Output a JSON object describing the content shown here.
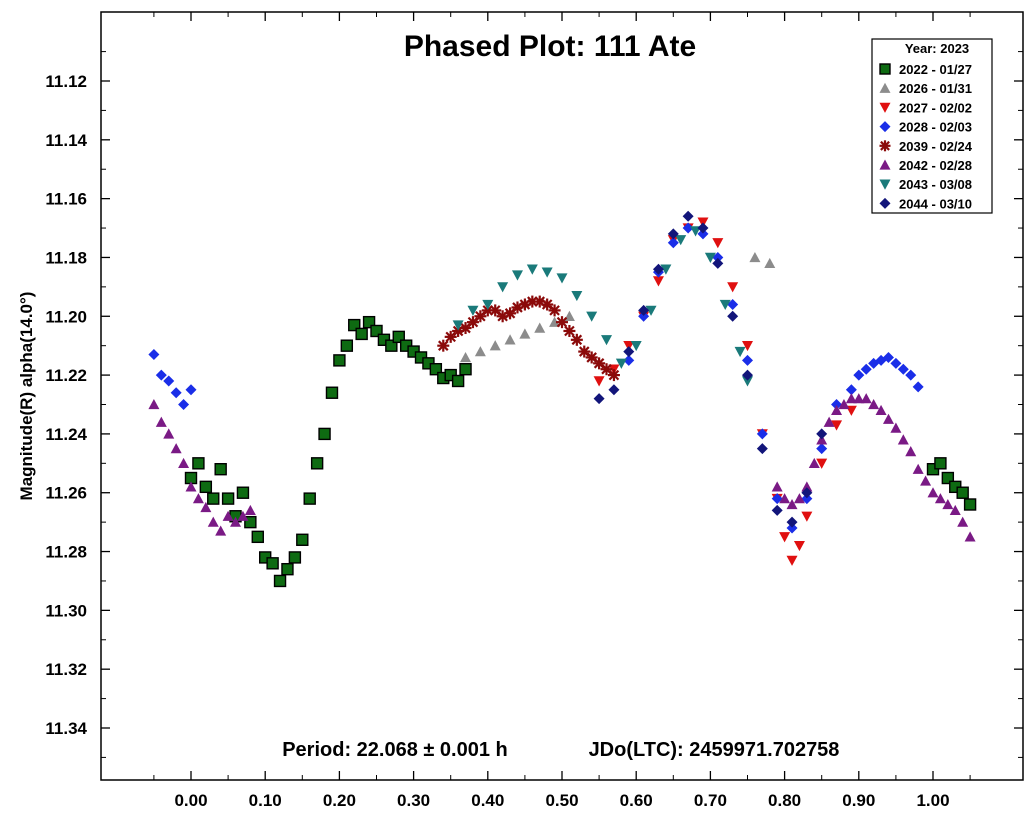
{
  "chart_data": {
    "type": "scatter",
    "title": "Phased Plot: 111 Ate",
    "xlabel": "",
    "ylabel": "Magnitude(R) alpha(14.0°)",
    "xlim": [
      -0.12,
      1.12
    ],
    "ylim": [
      11.1,
      11.36
    ],
    "y_inverted": true,
    "x_ticks": [
      "0.00",
      "0.10",
      "0.20",
      "0.30",
      "0.40",
      "0.50",
      "0.60",
      "0.70",
      "0.80",
      "0.90",
      "1.00"
    ],
    "x_tick_values": [
      0,
      0.1,
      0.2,
      0.3,
      0.4,
      0.5,
      0.6,
      0.7,
      0.8,
      0.9,
      1.0
    ],
    "y_ticks": [
      "11.12",
      "11.14",
      "11.16",
      "11.18",
      "11.20",
      "11.22",
      "11.24",
      "11.26",
      "11.28",
      "11.30",
      "11.32",
      "11.34"
    ],
    "y_tick_values": [
      11.12,
      11.14,
      11.16,
      11.18,
      11.2,
      11.22,
      11.24,
      11.26,
      11.28,
      11.3,
      11.32,
      11.34
    ],
    "grid": false,
    "legend_position": "top-right",
    "legend_title": "Year: 2023",
    "period_label": "Period: 22.068 ± 0.001 h",
    "epoch_label": "JDo(LTC): 2459971.702758",
    "series": [
      {
        "name": "2022 - 01/27",
        "marker": "square",
        "color": "#0e6b12",
        "x": [
          0.0,
          0.01,
          0.02,
          0.03,
          0.04,
          0.05,
          0.06,
          0.07,
          0.08,
          0.09,
          0.1,
          0.11,
          0.12,
          0.13,
          0.14,
          0.15,
          0.16,
          0.17,
          0.18,
          0.19,
          0.2,
          0.21,
          0.22,
          0.23,
          0.24,
          0.25,
          0.26,
          0.27,
          0.28,
          0.29,
          0.3,
          0.31,
          0.32,
          0.33,
          0.34,
          0.35,
          0.36,
          0.37,
          1.0,
          1.01,
          1.02,
          1.03,
          1.04,
          1.05
        ],
        "y": [
          11.255,
          11.25,
          11.258,
          11.262,
          11.252,
          11.262,
          11.268,
          11.26,
          11.27,
          11.275,
          11.282,
          11.284,
          11.29,
          11.286,
          11.282,
          11.276,
          11.262,
          11.25,
          11.24,
          11.226,
          11.215,
          11.21,
          11.203,
          11.206,
          11.202,
          11.205,
          11.208,
          11.21,
          11.207,
          11.21,
          11.212,
          11.214,
          11.216,
          11.218,
          11.221,
          11.22,
          11.222,
          11.218,
          11.252,
          11.25,
          11.255,
          11.258,
          11.26,
          11.264
        ]
      },
      {
        "name": "2026 - 01/31",
        "marker": "triangle-up",
        "color": "#8c8c8c",
        "x": [
          0.37,
          0.39,
          0.41,
          0.43,
          0.45,
          0.47,
          0.49,
          0.51,
          0.76,
          0.78
        ],
        "y": [
          11.214,
          11.212,
          11.21,
          11.208,
          11.206,
          11.204,
          11.202,
          11.2,
          11.18,
          11.182
        ]
      },
      {
        "name": "2027 - 02/02",
        "marker": "triangle-down",
        "color": "#e01010",
        "x": [
          0.55,
          0.57,
          0.59,
          0.61,
          0.63,
          0.65,
          0.67,
          0.69,
          0.71,
          0.73,
          0.75,
          0.77,
          0.79,
          0.8,
          0.81,
          0.82,
          0.83,
          0.85,
          0.87,
          0.89
        ],
        "y": [
          11.222,
          11.218,
          11.21,
          11.2,
          11.188,
          11.174,
          11.17,
          11.168,
          11.175,
          11.19,
          11.21,
          11.24,
          11.262,
          11.275,
          11.283,
          11.278,
          11.268,
          11.25,
          11.237,
          11.232
        ]
      },
      {
        "name": "2028 - 02/03",
        "marker": "diamond",
        "color": "#1a2ee8",
        "x": [
          -0.05,
          -0.04,
          -0.03,
          -0.02,
          -0.01,
          0.0,
          0.59,
          0.61,
          0.63,
          0.65,
          0.67,
          0.69,
          0.71,
          0.73,
          0.75,
          0.77,
          0.79,
          0.81,
          0.83,
          0.85,
          0.87,
          0.89,
          0.9,
          0.91,
          0.92,
          0.93,
          0.94,
          0.95,
          0.96,
          0.97,
          0.98
        ],
        "y": [
          11.213,
          11.22,
          11.222,
          11.226,
          11.23,
          11.225,
          11.215,
          11.2,
          11.185,
          11.175,
          11.17,
          11.172,
          11.18,
          11.196,
          11.215,
          11.24,
          11.262,
          11.272,
          11.262,
          11.245,
          11.23,
          11.225,
          11.22,
          11.218,
          11.216,
          11.215,
          11.214,
          11.216,
          11.218,
          11.22,
          11.224
        ]
      },
      {
        "name": "2039 - 02/24",
        "marker": "asterisk",
        "color": "#8b0a0a",
        "x": [
          0.34,
          0.35,
          0.36,
          0.37,
          0.38,
          0.39,
          0.4,
          0.41,
          0.42,
          0.43,
          0.44,
          0.45,
          0.46,
          0.47,
          0.48,
          0.49,
          0.5,
          0.51,
          0.52,
          0.53,
          0.54,
          0.55,
          0.56,
          0.57
        ],
        "y": [
          11.21,
          11.207,
          11.205,
          11.204,
          11.202,
          11.2,
          11.198,
          11.198,
          11.2,
          11.199,
          11.197,
          11.196,
          11.195,
          11.195,
          11.196,
          11.198,
          11.202,
          11.205,
          11.208,
          11.212,
          11.214,
          11.216,
          11.218,
          11.22
        ]
      },
      {
        "name": "2042 - 02/28",
        "marker": "triangle-up",
        "color": "#7a1a85",
        "x": [
          -0.05,
          -0.04,
          -0.03,
          -0.02,
          -0.01,
          0.0,
          0.01,
          0.02,
          0.03,
          0.04,
          0.05,
          0.06,
          0.07,
          0.08,
          0.79,
          0.8,
          0.81,
          0.82,
          0.83,
          0.84,
          0.85,
          0.86,
          0.87,
          0.88,
          0.89,
          0.9,
          0.91,
          0.92,
          0.93,
          0.94,
          0.95,
          0.96,
          0.97,
          0.98,
          0.99,
          1.0,
          1.01,
          1.02,
          1.03,
          1.04,
          1.05
        ],
        "y": [
          11.23,
          11.236,
          11.24,
          11.245,
          11.25,
          11.258,
          11.262,
          11.265,
          11.27,
          11.273,
          11.268,
          11.27,
          11.268,
          11.266,
          11.258,
          11.262,
          11.264,
          11.262,
          11.258,
          11.25,
          11.242,
          11.236,
          11.232,
          11.23,
          11.228,
          11.228,
          11.228,
          11.23,
          11.232,
          11.235,
          11.238,
          11.242,
          11.246,
          11.252,
          11.256,
          11.26,
          11.262,
          11.264,
          11.266,
          11.27,
          11.275
        ]
      },
      {
        "name": "2043 - 03/08",
        "marker": "triangle-down",
        "color": "#1a7a7a",
        "x": [
          0.36,
          0.38,
          0.4,
          0.42,
          0.44,
          0.46,
          0.48,
          0.5,
          0.52,
          0.54,
          0.56,
          0.58,
          0.6,
          0.62,
          0.64,
          0.66,
          0.68,
          0.7,
          0.72,
          0.74,
          0.75
        ],
        "y": [
          11.203,
          11.198,
          11.196,
          11.19,
          11.186,
          11.184,
          11.185,
          11.187,
          11.193,
          11.2,
          11.208,
          11.216,
          11.21,
          11.198,
          11.184,
          11.174,
          11.171,
          11.18,
          11.196,
          11.212,
          11.222
        ]
      },
      {
        "name": "2044 - 03/10",
        "marker": "diamond",
        "color": "#12157a",
        "x": [
          0.55,
          0.57,
          0.59,
          0.61,
          0.63,
          0.65,
          0.67,
          0.69,
          0.71,
          0.73,
          0.75,
          0.77,
          0.79,
          0.81,
          0.83,
          0.85
        ],
        "y": [
          11.228,
          11.225,
          11.212,
          11.198,
          11.184,
          11.172,
          11.166,
          11.17,
          11.182,
          11.2,
          11.22,
          11.245,
          11.266,
          11.27,
          11.26,
          11.24
        ]
      }
    ]
  }
}
